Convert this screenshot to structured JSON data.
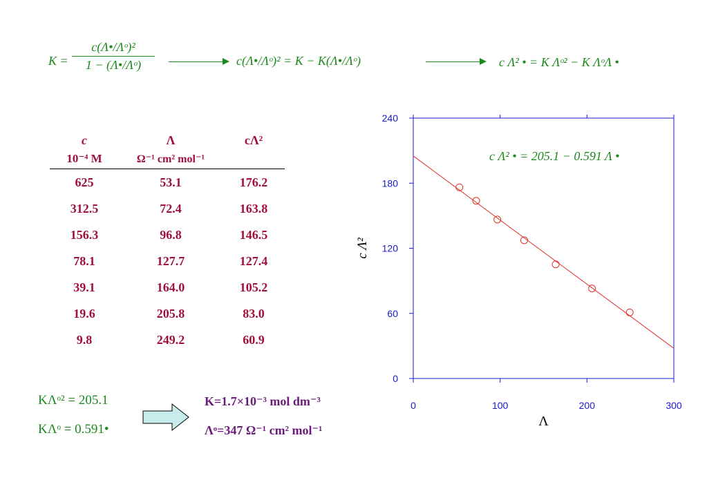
{
  "equations": {
    "eq1_lhs": "K =",
    "eq1_num": "c(Λ•/Λᵒ)²",
    "eq1_den": "1 − (Λ•/Λᵒ)",
    "eq2": "c(Λ•/Λᵒ)² = K − K(Λ•/Λᵒ)",
    "eq3": "c Λ² • = K Λᵒ² − K ΛᵒΛ •"
  },
  "table": {
    "headers": [
      {
        "sym": "c",
        "unit": "10⁻⁴ M"
      },
      {
        "sym": "Λ",
        "unit": "Ω⁻¹ cm² mol⁻¹"
      },
      {
        "sym": "cΛ²",
        "unit": ""
      }
    ],
    "rows": [
      [
        "625",
        "53.1",
        "176.2"
      ],
      [
        "312.5",
        "72.4",
        "163.8"
      ],
      [
        "156.3",
        "96.8",
        "146.5"
      ],
      [
        "78.1",
        "127.7",
        "127.4"
      ],
      [
        "39.1",
        "164.0",
        "105.2"
      ],
      [
        "19.6",
        "205.8",
        "83.0"
      ],
      [
        "9.8",
        "249.2",
        "60.9"
      ]
    ]
  },
  "results": {
    "fit1": "KΛᵒ² = 205.1",
    "fit2": "KΛᵒ = 0.591•",
    "K": "K=1.7×10⁻³ mol dm⁻³",
    "Lambda0": "Λᵒ=347 Ω⁻¹ cm² mol⁻¹"
  },
  "colors": {
    "green": "#1a8a1a",
    "maroon": "#a0103a",
    "purple": "#6a1b7a",
    "axis_blue": "#1a1acc",
    "fit_red": "#e0302a",
    "arrow_fill": "#c8ecec"
  },
  "chart_data": {
    "type": "scatter",
    "xlabel": "Λ",
    "ylabel": "c Λ²",
    "annotation": "c Λ² • = 205.1 − 0.591 Λ •",
    "xlim": [
      0,
      300
    ],
    "ylim": [
      0,
      240
    ],
    "xticks": [
      "0",
      "100",
      "200",
      "300"
    ],
    "yticks": [
      "0",
      "60",
      "120",
      "180",
      "240"
    ],
    "x": [
      53.1,
      72.4,
      96.8,
      127.7,
      164.0,
      205.8,
      249.2
    ],
    "y": [
      176.2,
      163.8,
      146.5,
      127.4,
      105.2,
      83.0,
      60.9
    ],
    "fit": {
      "intercept": 205.1,
      "slope": -0.591
    }
  }
}
